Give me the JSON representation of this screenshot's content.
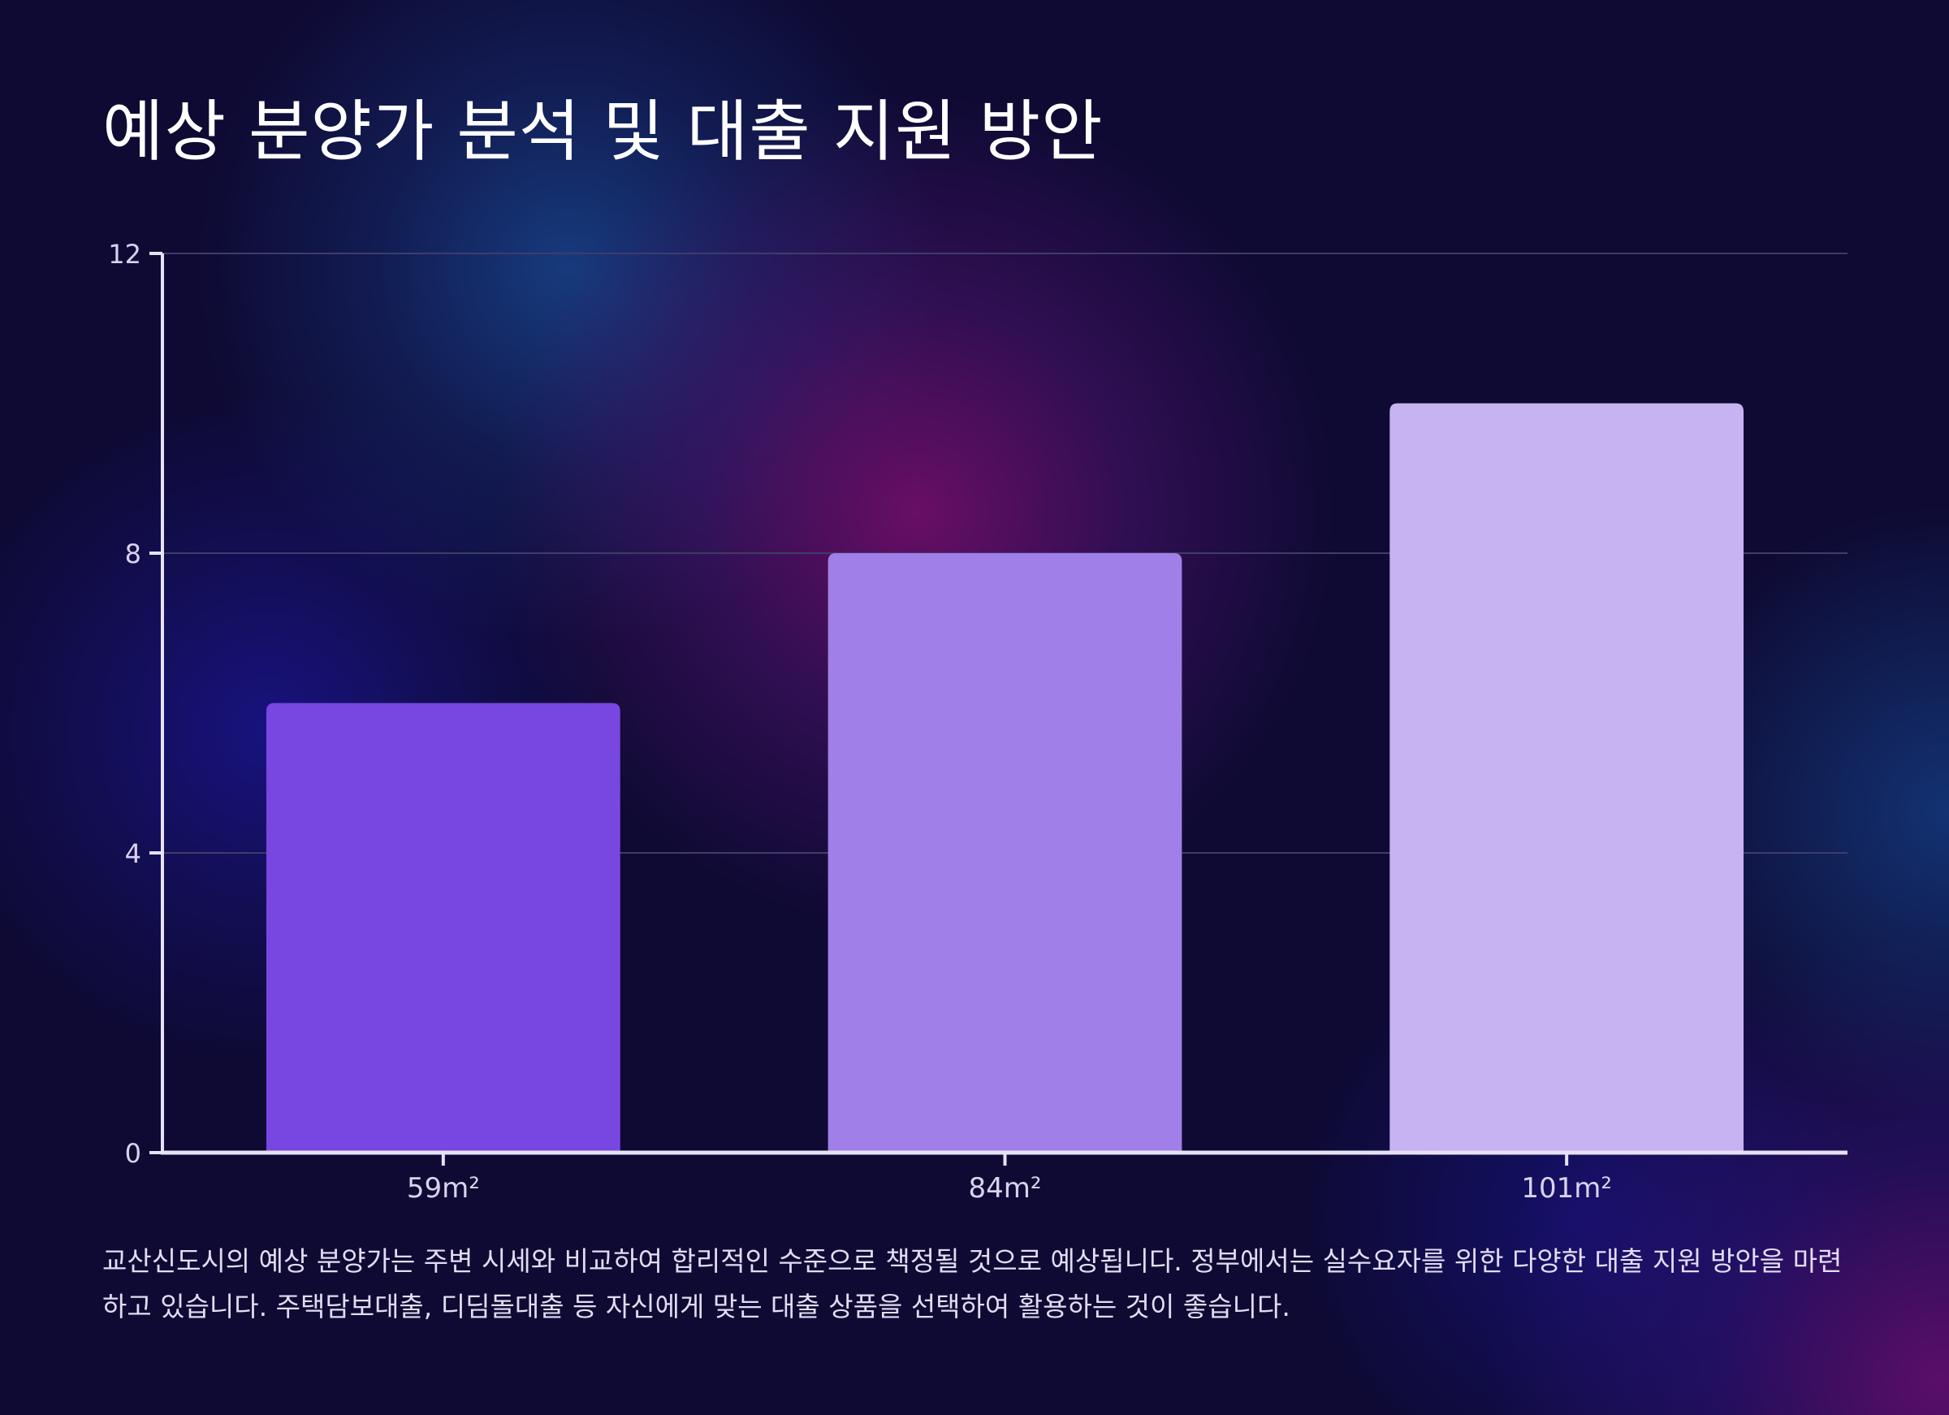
{
  "title": "예상 분양가 분석 및 대출 지원 방안",
  "description": "교산신도시의 예상 분양가는 주변 시세와 비교하여 합리적인 수준으로 책정될 것으로 예상됩니다. 정부에서는 실수요자를 위한 다양한 대출 지원 방안을 마련하고 있습니다. 주택담보대출, 디딤돌대출 등 자신에게 맞는 대출 상품을 선택하여 활용하는 것이 좋습니다.",
  "chart_data": {
    "type": "bar",
    "categories": [
      "59m²",
      "84m²",
      "101m²"
    ],
    "values": [
      6,
      8,
      10
    ],
    "yticks": [
      0,
      4,
      8,
      12
    ],
    "ylim": [
      0,
      12
    ],
    "xlabel": "",
    "ylabel": "",
    "grid": true,
    "colors": [
      "#7846e0",
      "#a07fe8",
      "#c7b2f2"
    ],
    "axis_color": "#e6e1f5",
    "grid_color": "#3f3c6a"
  }
}
